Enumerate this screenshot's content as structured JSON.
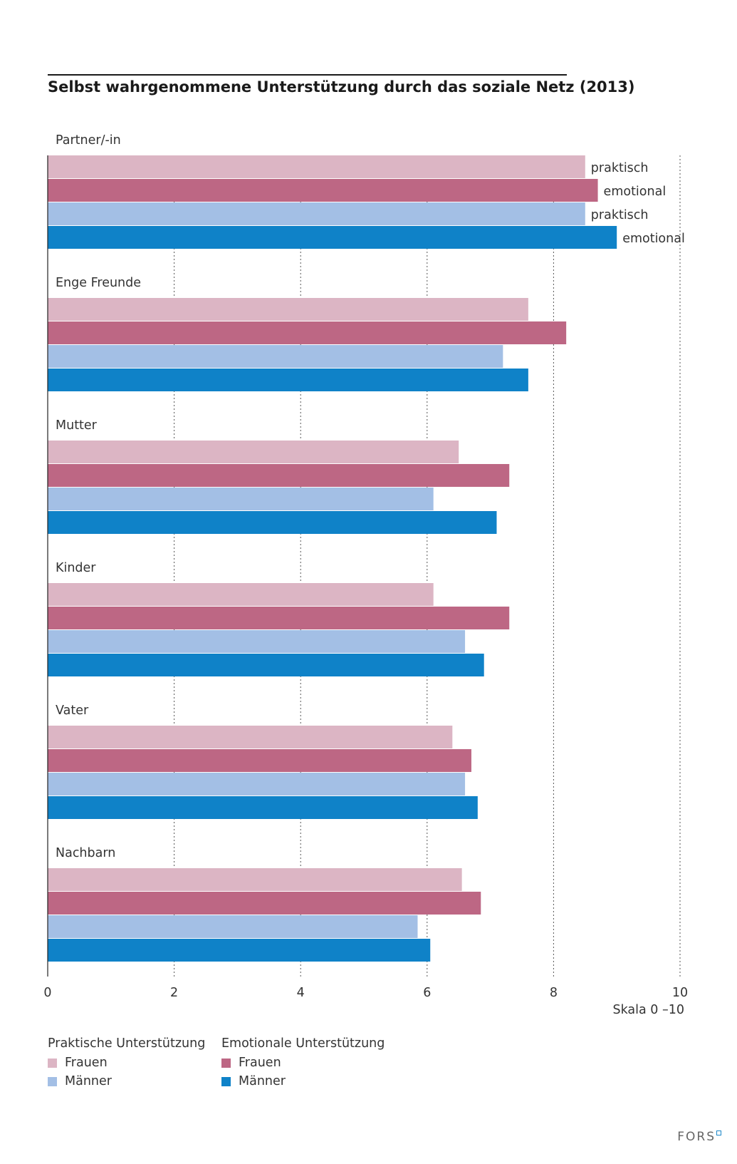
{
  "chart_data": {
    "type": "bar",
    "orientation": "horizontal",
    "title": "Selbst wahrgenommene Unterstützung durch das soziale Netz (2013)",
    "xlabel": "Skala 0 –10",
    "xlim": [
      0,
      10
    ],
    "xticks": [
      0,
      2,
      4,
      6,
      8,
      10
    ],
    "categories": [
      "Partner/-in",
      "Enge Freunde",
      "Mutter",
      "Kinder",
      "Vater",
      "Nachbarn"
    ],
    "series": [
      {
        "key": "frauen_praktisch",
        "color": "#dcb5c4",
        "bar_label": "praktisch",
        "values": [
          8.5,
          7.6,
          6.5,
          6.1,
          6.4,
          6.55
        ]
      },
      {
        "key": "frauen_emotional",
        "color": "#bd6784",
        "bar_label": "emotional",
        "values": [
          8.7,
          8.2,
          7.3,
          7.3,
          6.7,
          6.85
        ]
      },
      {
        "key": "maenner_praktisch",
        "color": "#a3bfe5",
        "bar_label": "praktisch",
        "values": [
          8.5,
          7.2,
          6.1,
          6.6,
          6.6,
          5.85
        ]
      },
      {
        "key": "maenner_emotional",
        "color": "#0f82c8",
        "bar_label": "emotional",
        "values": [
          9.0,
          7.6,
          7.1,
          6.9,
          6.8,
          6.05
        ]
      }
    ],
    "grid": "vertical-dotted",
    "legend": {
      "placement": "bottom-left",
      "groups": [
        {
          "heading": "Praktische Unterstützung",
          "items": [
            {
              "label": "Frauen",
              "color": "#dcb5c4"
            },
            {
              "label": "Männer",
              "color": "#a3bfe5"
            }
          ]
        },
        {
          "heading": "Emotionale Unterstützung",
          "items": [
            {
              "label": "Frauen",
              "color": "#bd6784"
            },
            {
              "label": "Männer",
              "color": "#0f82c8"
            }
          ]
        }
      ]
    }
  },
  "brand": "FORS"
}
